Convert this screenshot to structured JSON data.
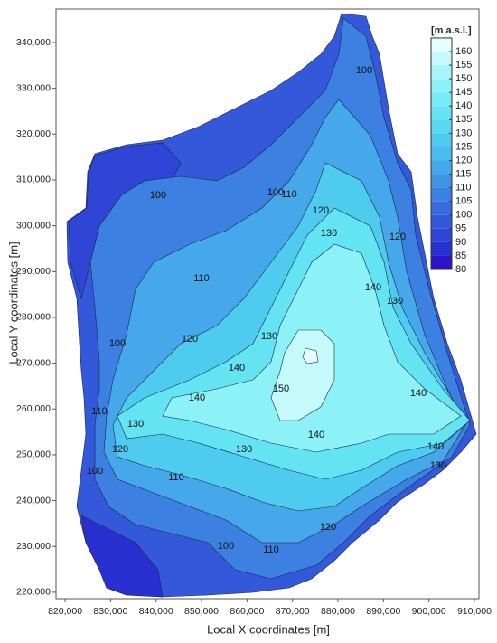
{
  "chart_data": {
    "type": "contour",
    "xlabel": "Local X coordinates [m]",
    "ylabel": "Local Y coordinates [m]",
    "xlim": [
      818000,
      911000
    ],
    "ylim": [
      218600,
      347300
    ],
    "xticks": [
      {
        "value": 820000,
        "label": "820,000"
      },
      {
        "value": 830000,
        "label": "830,000"
      },
      {
        "value": 840000,
        "label": "840,000"
      },
      {
        "value": 850000,
        "label": "850,000"
      },
      {
        "value": 860000,
        "label": "860,000"
      },
      {
        "value": 870000,
        "label": "870,000"
      },
      {
        "value": 880000,
        "label": "880,000"
      },
      {
        "value": 890000,
        "label": "890,000"
      },
      {
        "value": 900000,
        "label": "900,000"
      },
      {
        "value": 910000,
        "label": "910,000"
      }
    ],
    "yticks": [
      {
        "value": 220000,
        "label": "220,000"
      },
      {
        "value": 230000,
        "label": "230,000"
      },
      {
        "value": 240000,
        "label": "240,000"
      },
      {
        "value": 250000,
        "label": "250,000"
      },
      {
        "value": 260000,
        "label": "260,000"
      },
      {
        "value": 270000,
        "label": "270,000"
      },
      {
        "value": 280000,
        "label": "280,000"
      },
      {
        "value": 290000,
        "label": "290,000"
      },
      {
        "value": 300000,
        "label": "300,000"
      },
      {
        "value": 310000,
        "label": "310,000"
      },
      {
        "value": 320000,
        "label": "320,000"
      },
      {
        "value": 330000,
        "label": "330,000"
      },
      {
        "value": 340000,
        "label": "340,000"
      }
    ],
    "colorbar": {
      "title": "[m a.s.l.]",
      "lim": [
        80,
        165
      ],
      "ticks": [
        80,
        85,
        90,
        95,
        100,
        105,
        110,
        115,
        120,
        125,
        130,
        135,
        140,
        145,
        150,
        155,
        160
      ],
      "colors": [
        "#2b14c8",
        "#2a2fd0",
        "#2e45d6",
        "#3458da",
        "#386bde",
        "#3c80e2",
        "#4094e6",
        "#45a8ea",
        "#4abbee",
        "#50cbf0",
        "#58d9f2",
        "#64e4f3",
        "#76ecf5",
        "#8cf2f7",
        "#a6f6f9",
        "#c4fafb",
        "#e4fdfd"
      ]
    },
    "contour_labels": [
      100,
      100,
      100,
      100,
      100,
      100,
      110,
      110,
      110,
      110,
      110,
      120,
      120,
      120,
      120,
      120,
      130,
      130,
      130,
      130,
      130,
      130,
      140,
      140,
      140,
      140,
      140,
      140,
      150
    ]
  }
}
